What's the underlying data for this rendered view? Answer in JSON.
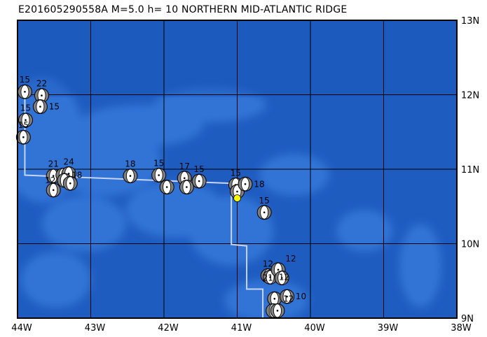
{
  "title": "E201605290558A M=5.0 h= 10 NORTHERN MID-ATLANTIC RIDGE",
  "map": {
    "lon_range": [
      -44,
      -38
    ],
    "lat_range": [
      9,
      13
    ],
    "x_ticks": [
      "44W",
      "43W",
      "42W",
      "41W",
      "40W",
      "39W",
      "38W"
    ],
    "y_ticks": [
      "9N",
      "10N",
      "11N",
      "12N",
      "13N"
    ],
    "grid": true,
    "colors": {
      "ocean_deep": "#1f5cc0",
      "ocean_light": "#3a7fe0",
      "boundary": "#c8d4f4",
      "compression": "#808080",
      "dilatation": "#ffffff",
      "epicenter": "#ffff00"
    }
  },
  "plate_boundary": [
    [
      -43.9,
      11.96
    ],
    [
      -43.9,
      10.92
    ],
    [
      -41.08,
      10.81
    ],
    [
      -41.08,
      9.99
    ],
    [
      -40.87,
      9.97
    ],
    [
      -40.87,
      9.39
    ],
    [
      -40.65,
      9.39
    ],
    [
      -40.65,
      9.0
    ]
  ],
  "epicenter": {
    "lon": -41.0,
    "lat": 10.61
  },
  "events": [
    {
      "lon": -43.9,
      "lat": 12.04,
      "depth": "15"
    },
    {
      "lon": -43.67,
      "lat": 11.99,
      "depth": "22"
    },
    {
      "lon": -43.69,
      "lat": 11.84,
      "depth": "15"
    },
    {
      "lon": -43.89,
      "lat": 11.66,
      "depth": "15"
    },
    {
      "lon": -43.92,
      "lat": 11.43,
      "depth": "15"
    },
    {
      "lon": -43.51,
      "lat": 10.91,
      "depth": "21"
    },
    {
      "lon": -43.38,
      "lat": 10.92,
      "depth": "18"
    },
    {
      "lon": -43.3,
      "lat": 10.94,
      "depth": "24"
    },
    {
      "lon": -43.36,
      "lat": 10.85,
      "depth": "12"
    },
    {
      "lon": -43.28,
      "lat": 10.81,
      "depth": ""
    },
    {
      "lon": -43.51,
      "lat": 10.72,
      "depth": ""
    },
    {
      "lon": -42.46,
      "lat": 10.91,
      "depth": "18"
    },
    {
      "lon": -42.07,
      "lat": 10.92,
      "depth": "15"
    },
    {
      "lon": -41.96,
      "lat": 10.76,
      "depth": ""
    },
    {
      "lon": -41.72,
      "lat": 10.88,
      "depth": "17"
    },
    {
      "lon": -41.69,
      "lat": 10.76,
      "depth": ""
    },
    {
      "lon": -41.52,
      "lat": 10.84,
      "depth": "15"
    },
    {
      "lon": -41.02,
      "lat": 10.79,
      "depth": "15"
    },
    {
      "lon": -41.0,
      "lat": 10.7,
      "depth": ""
    },
    {
      "lon": -40.89,
      "lat": 10.8,
      "depth": "18"
    },
    {
      "lon": -40.63,
      "lat": 10.42,
      "depth": "15"
    },
    {
      "lon": -40.58,
      "lat": 9.57,
      "depth": "12"
    },
    {
      "lon": -40.55,
      "lat": 9.55,
      "depth": "12"
    },
    {
      "lon": -40.44,
      "lat": 9.65,
      "depth": "12"
    },
    {
      "lon": -40.39,
      "lat": 9.54,
      "depth": "21"
    },
    {
      "lon": -40.49,
      "lat": 9.26,
      "depth": "12"
    },
    {
      "lon": -40.32,
      "lat": 9.29,
      "depth": "10"
    },
    {
      "lon": -40.51,
      "lat": 9.1,
      "depth": ""
    },
    {
      "lon": -40.45,
      "lat": 9.1,
      "depth": ""
    }
  ]
}
